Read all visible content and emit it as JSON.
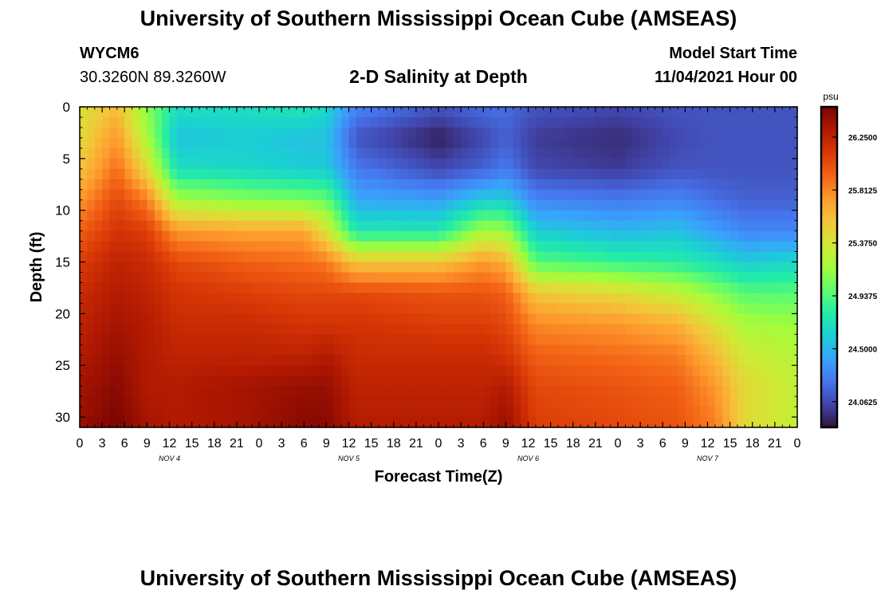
{
  "header": {
    "title": "University of Southern Mississippi Ocean Cube (AMSEAS)",
    "station_id": "WYCM6",
    "coordinates": "30.3260N  89.3260W",
    "plot_title": "2-D Salinity at Depth",
    "model_start_label": "Model Start Time",
    "model_start_value": "11/04/2021 Hour 00"
  },
  "footer": {
    "title": "University of Southern Mississippi Ocean Cube (AMSEAS)"
  },
  "chart_data": {
    "type": "heatmap",
    "title": "2-D Salinity at Depth",
    "xlabel": "Forecast Time(Z)",
    "ylabel": "Depth (ft)",
    "x_ticks": [
      "0",
      "3",
      "6",
      "9",
      "12",
      "15",
      "18",
      "21",
      "0",
      "3",
      "6",
      "9",
      "12",
      "15",
      "18",
      "21",
      "0",
      "3",
      "6",
      "9",
      "12",
      "15",
      "18",
      "21",
      "0",
      "3",
      "6",
      "9",
      "12",
      "15",
      "18",
      "21",
      "0"
    ],
    "date_labels": [
      {
        "text": "NOV 4",
        "hour": 12
      },
      {
        "text": "NOV 5",
        "hour": 36
      },
      {
        "text": "NOV 6",
        "hour": 60
      },
      {
        "text": "NOV 7",
        "hour": 84
      }
    ],
    "xlim": [
      0,
      96
    ],
    "y_ticks": [
      "0",
      "5",
      "10",
      "15",
      "20",
      "25",
      "30"
    ],
    "y_tick_values": [
      0,
      5,
      10,
      15,
      20,
      25,
      30
    ],
    "ylim": [
      0,
      31
    ],
    "colorbar": {
      "unit": "psu",
      "min": 23.85,
      "max": 26.5,
      "tick_labels": [
        "26.2500",
        "25.8125",
        "25.3750",
        "24.9375",
        "24.5000",
        "24.0625"
      ],
      "tick_values": [
        26.25,
        25.8125,
        25.375,
        24.9375,
        24.5,
        24.0625
      ]
    },
    "profiles": [
      {
        "hour": 0,
        "values": [
          25.4,
          25.45,
          25.55,
          25.75,
          25.95,
          26.1,
          26.2,
          26.25,
          26.3,
          26.35,
          26.4
        ]
      },
      {
        "hour": 5,
        "values": [
          25.6,
          25.75,
          25.9,
          26.05,
          26.15,
          26.25,
          26.3,
          26.35,
          26.4,
          26.45,
          26.5
        ]
      },
      {
        "hour": 9,
        "values": [
          25.1,
          25.2,
          25.45,
          25.85,
          26.1,
          26.2,
          26.25,
          26.3,
          26.3,
          26.3,
          26.35
        ]
      },
      {
        "hour": 13,
        "values": [
          24.7,
          24.55,
          24.7,
          25.2,
          25.75,
          26.05,
          26.15,
          26.2,
          26.25,
          26.3,
          26.3
        ]
      },
      {
        "hour": 22,
        "values": [
          24.7,
          24.6,
          24.65,
          25.1,
          25.7,
          25.95,
          26.1,
          26.2,
          26.25,
          26.35,
          26.35
        ]
      },
      {
        "hour": 30,
        "values": [
          24.75,
          24.55,
          24.6,
          25.05,
          25.7,
          25.9,
          26.05,
          26.15,
          26.25,
          26.4,
          26.45
        ]
      },
      {
        "hour": 33,
        "values": [
          24.65,
          24.55,
          24.6,
          25.0,
          25.4,
          25.85,
          26.05,
          26.15,
          26.3,
          26.4,
          26.45
        ]
      },
      {
        "hour": 37,
        "values": [
          24.3,
          24.1,
          24.25,
          24.45,
          24.75,
          25.55,
          26.05,
          26.15,
          26.2,
          26.25,
          26.3
        ]
      },
      {
        "hour": 48,
        "values": [
          24.1,
          23.9,
          24.05,
          24.4,
          24.75,
          25.55,
          26.0,
          26.1,
          26.2,
          26.25,
          26.3
        ]
      },
      {
        "hour": 54,
        "values": [
          24.2,
          24.05,
          24.15,
          24.6,
          25.2,
          25.75,
          26.0,
          26.1,
          26.2,
          26.25,
          26.3
        ]
      },
      {
        "hour": 57,
        "values": [
          24.2,
          24.15,
          24.25,
          24.6,
          25.15,
          25.65,
          25.95,
          26.05,
          26.15,
          26.3,
          26.4
        ]
      },
      {
        "hour": 61,
        "values": [
          24.1,
          24.0,
          24.05,
          24.3,
          24.6,
          24.95,
          25.55,
          25.8,
          25.95,
          26.05,
          26.1
        ]
      },
      {
        "hour": 72,
        "values": [
          24.05,
          23.95,
          24.0,
          24.25,
          24.5,
          24.85,
          25.45,
          25.75,
          25.9,
          26.0,
          26.05
        ]
      },
      {
        "hour": 80,
        "values": [
          24.1,
          24.05,
          24.1,
          24.3,
          24.55,
          24.8,
          25.3,
          25.65,
          25.85,
          25.95,
          26.0
        ]
      },
      {
        "hour": 85,
        "values": [
          24.1,
          24.1,
          24.1,
          24.2,
          24.4,
          24.7,
          25.1,
          25.4,
          25.6,
          25.75,
          25.85
        ]
      },
      {
        "hour": 89,
        "values": [
          24.1,
          24.1,
          24.1,
          24.15,
          24.3,
          24.6,
          24.95,
          25.2,
          25.35,
          25.45,
          25.45
        ]
      },
      {
        "hour": 96,
        "values": [
          24.1,
          24.1,
          24.1,
          24.15,
          24.3,
          24.65,
          24.95,
          25.15,
          25.25,
          25.3,
          25.3
        ]
      }
    ],
    "profile_depths": [
      0,
      3,
      6,
      9,
      12,
      15,
      18,
      21,
      24,
      27,
      31
    ]
  },
  "colors": {
    "colormap": [
      "#30123b",
      "#4145ab",
      "#4675ed",
      "#39a2fc",
      "#1bcfd4",
      "#24eca6",
      "#61fc6c",
      "#a4fc3b",
      "#d1e834",
      "#f3c63a",
      "#fe9b2d",
      "#f36315",
      "#d93806",
      "#b11901",
      "#7a0402"
    ],
    "axis": "#000000"
  }
}
